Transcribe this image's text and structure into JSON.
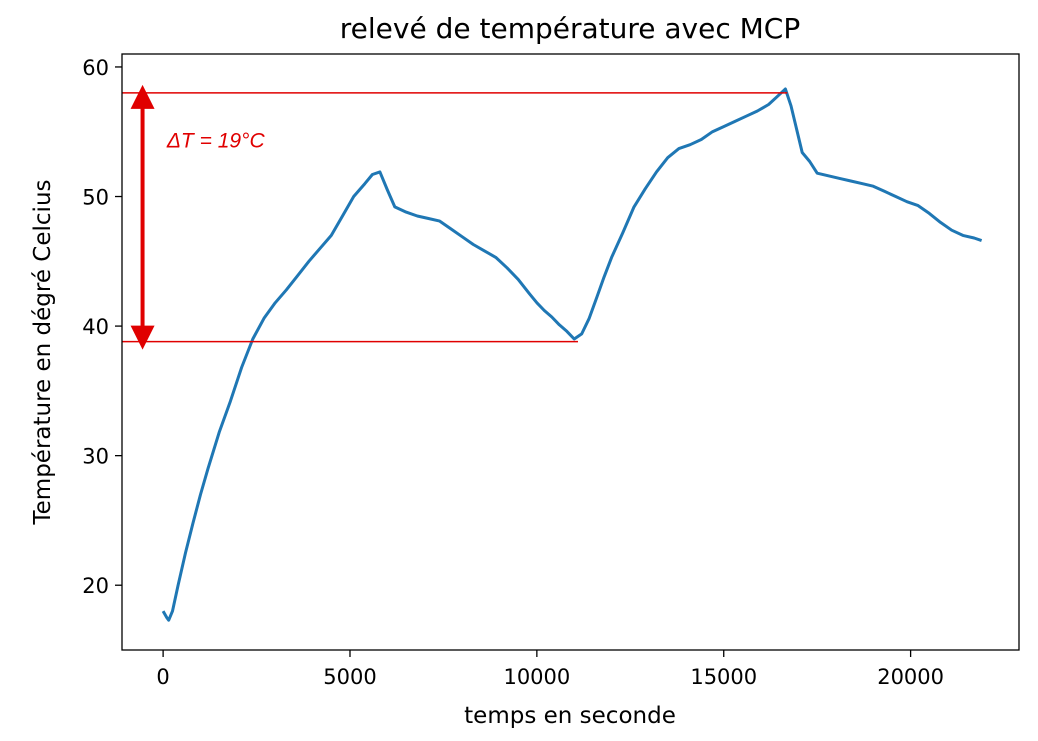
{
  "chart_data": {
    "type": "line",
    "title": "relevé de température avec MCP",
    "xlabel": "temps en seconde",
    "ylabel": "Température en dégré Celcius",
    "xlim": [
      -1100,
      22900
    ],
    "ylim": [
      15,
      61
    ],
    "x_ticks": [
      0,
      5000,
      10000,
      15000,
      20000
    ],
    "x_tick_labels": [
      "0",
      "5000",
      "10000",
      "15000",
      "20000"
    ],
    "y_ticks": [
      20,
      30,
      40,
      50,
      60
    ],
    "y_tick_labels": [
      "20",
      "30",
      "40",
      "50",
      "60"
    ],
    "grid": false,
    "line_color": "#1f77b4",
    "annotation_color": "#e00000",
    "series": [
      {
        "x": [
          0,
          100,
          150,
          250,
          400,
          600,
          800,
          1000,
          1200,
          1500,
          1800,
          2100,
          2400,
          2700,
          3000,
          3300,
          3600,
          3900,
          4200,
          4500,
          4800,
          5100,
          5400,
          5600,
          5800,
          6000,
          6200,
          6500,
          6800,
          7100,
          7400,
          7700,
          8000,
          8300,
          8600,
          8900,
          9200,
          9500,
          9800,
          10000,
          10200,
          10400,
          10600,
          10800,
          11000,
          11200,
          11400,
          11600,
          11800,
          12000,
          12300,
          12600,
          12900,
          13200,
          13500,
          13800,
          14100,
          14400,
          14700,
          15000,
          15300,
          15600,
          15900,
          16200,
          16500,
          16650,
          16800,
          16950,
          17100,
          17300,
          17500,
          17800,
          18100,
          18400,
          18700,
          19000,
          19300,
          19600,
          19900,
          20200,
          20500,
          20800,
          21100,
          21400,
          21700,
          21900
        ],
        "y": [
          18.0,
          17.5,
          17.3,
          18.0,
          20.0,
          22.5,
          24.8,
          27.0,
          29.0,
          31.8,
          34.2,
          36.8,
          39.0,
          40.6,
          41.8,
          42.8,
          43.9,
          45.0,
          46.0,
          47.0,
          48.5,
          50.0,
          51.0,
          51.7,
          51.9,
          50.5,
          49.2,
          48.8,
          48.5,
          48.3,
          48.1,
          47.5,
          46.9,
          46.3,
          45.8,
          45.3,
          44.5,
          43.6,
          42.5,
          41.8,
          41.2,
          40.7,
          40.1,
          39.6,
          39.0,
          39.4,
          40.6,
          42.2,
          43.8,
          45.3,
          47.2,
          49.2,
          50.6,
          51.9,
          53.0,
          53.7,
          54.0,
          54.4,
          55.0,
          55.4,
          55.8,
          56.2,
          56.6,
          57.1,
          57.9,
          58.3,
          57.0,
          55.2,
          53.4,
          52.7,
          51.8,
          51.6,
          51.4,
          51.2,
          51.0,
          50.8,
          50.4,
          50.0,
          49.6,
          49.3,
          48.7,
          48.0,
          47.4,
          47.0,
          46.8,
          46.6
        ]
      }
    ],
    "annotations": {
      "upper_level": 58.0,
      "lower_level": 38.8,
      "upper_line_x": [
        -1100,
        16700
      ],
      "lower_line_x": [
        -1100,
        11100
      ],
      "arrow_x": -550,
      "text": "ΔT = 19°C",
      "text_anchor": [
        100,
        53.8
      ]
    }
  }
}
